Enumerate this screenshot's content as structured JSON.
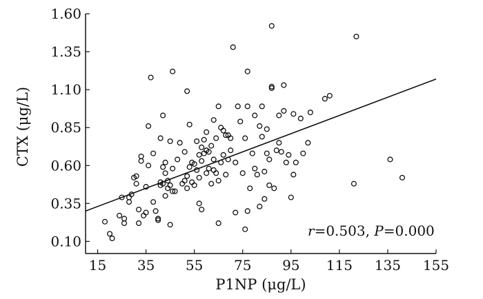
{
  "chart_data": {
    "type": "scatter",
    "xlabel": "P1NP (μg/L)",
    "ylabel": "CTX (μg/L)",
    "xlim": [
      10,
      155
    ],
    "ylim": [
      0.02,
      1.6
    ],
    "x_ticks": [
      "15",
      "35",
      "55",
      "75",
      "95",
      "115",
      "135",
      "155"
    ],
    "y_ticks": [
      "0.10",
      "0.35",
      "0.60",
      "0.85",
      "1.10",
      "1.35",
      "1.60"
    ],
    "annotation": {
      "r_label": "r",
      "r_value": "=0.503, ",
      "p_label": "P",
      "p_value": "=0.000"
    },
    "regression": {
      "x0": 10,
      "y0": 0.3,
      "x1": 155,
      "y1": 1.17
    },
    "marker": "open-circle",
    "points": [
      {
        "x": 18,
        "y": 0.23
      },
      {
        "x": 20,
        "y": 0.15
      },
      {
        "x": 21,
        "y": 0.12
      },
      {
        "x": 24,
        "y": 0.27
      },
      {
        "x": 25,
        "y": 0.39
      },
      {
        "x": 26,
        "y": 0.22
      },
      {
        "x": 26,
        "y": 0.25
      },
      {
        "x": 28,
        "y": 0.36
      },
      {
        "x": 28,
        "y": 0.39
      },
      {
        "x": 29,
        "y": 0.41
      },
      {
        "x": 30,
        "y": 0.52
      },
      {
        "x": 31,
        "y": 0.53
      },
      {
        "x": 31,
        "y": 0.48
      },
      {
        "x": 32,
        "y": 0.22
      },
      {
        "x": 32,
        "y": 0.31
      },
      {
        "x": 33,
        "y": 0.66
      },
      {
        "x": 33,
        "y": 0.63
      },
      {
        "x": 34,
        "y": 0.27
      },
      {
        "x": 35,
        "y": 0.29
      },
      {
        "x": 35,
        "y": 0.46
      },
      {
        "x": 36,
        "y": 0.6
      },
      {
        "x": 36,
        "y": 0.86
      },
      {
        "x": 37,
        "y": 1.18
      },
      {
        "x": 38,
        "y": 0.36
      },
      {
        "x": 38,
        "y": 0.68
      },
      {
        "x": 39,
        "y": 0.3
      },
      {
        "x": 40,
        "y": 0.24
      },
      {
        "x": 40,
        "y": 0.25
      },
      {
        "x": 41,
        "y": 0.47
      },
      {
        "x": 41,
        "y": 0.49
      },
      {
        "x": 41,
        "y": 0.78
      },
      {
        "x": 42,
        "y": 0.48
      },
      {
        "x": 42,
        "y": 0.59
      },
      {
        "x": 42,
        "y": 0.93
      },
      {
        "x": 43,
        "y": 0.4
      },
      {
        "x": 43,
        "y": 0.55
      },
      {
        "x": 43,
        "y": 0.62
      },
      {
        "x": 44,
        "y": 0.45
      },
      {
        "x": 44,
        "y": 0.5
      },
      {
        "x": 45,
        "y": 0.21
      },
      {
        "x": 45,
        "y": 0.47
      },
      {
        "x": 45,
        "y": 0.76
      },
      {
        "x": 46,
        "y": 0.43
      },
      {
        "x": 46,
        "y": 0.58
      },
      {
        "x": 46,
        "y": 1.22
      },
      {
        "x": 47,
        "y": 0.43
      },
      {
        "x": 48,
        "y": 0.64
      },
      {
        "x": 49,
        "y": 0.75
      },
      {
        "x": 50,
        "y": 0.48
      },
      {
        "x": 51,
        "y": 0.5
      },
      {
        "x": 51,
        "y": 0.69
      },
      {
        "x": 52,
        "y": 0.45
      },
      {
        "x": 52,
        "y": 0.53
      },
      {
        "x": 52,
        "y": 1.09
      },
      {
        "x": 53,
        "y": 0.59
      },
      {
        "x": 53,
        "y": 0.87
      },
      {
        "x": 54,
        "y": 0.49
      },
      {
        "x": 54,
        "y": 0.62
      },
      {
        "x": 55,
        "y": 0.47
      },
      {
        "x": 55,
        "y": 0.61
      },
      {
        "x": 56,
        "y": 0.57
      },
      {
        "x": 56,
        "y": 0.76
      },
      {
        "x": 57,
        "y": 0.35
      },
      {
        "x": 57,
        "y": 0.52
      },
      {
        "x": 57,
        "y": 0.67
      },
      {
        "x": 58,
        "y": 0.31
      },
      {
        "x": 58,
        "y": 0.63
      },
      {
        "x": 58,
        "y": 0.72
      },
      {
        "x": 59,
        "y": 0.68
      },
      {
        "x": 59,
        "y": 0.77
      },
      {
        "x": 60,
        "y": 0.55
      },
      {
        "x": 60,
        "y": 0.7
      },
      {
        "x": 60,
        "y": 0.82
      },
      {
        "x": 61,
        "y": 0.58
      },
      {
        "x": 61,
        "y": 0.69
      },
      {
        "x": 62,
        "y": 0.48
      },
      {
        "x": 62,
        "y": 0.73
      },
      {
        "x": 63,
        "y": 0.57
      },
      {
        "x": 63,
        "y": 0.64
      },
      {
        "x": 63,
        "y": 0.9
      },
      {
        "x": 64,
        "y": 0.55
      },
      {
        "x": 64,
        "y": 0.78
      },
      {
        "x": 65,
        "y": 0.22
      },
      {
        "x": 65,
        "y": 0.5
      },
      {
        "x": 65,
        "y": 0.99
      },
      {
        "x": 66,
        "y": 0.85
      },
      {
        "x": 66,
        "y": 0.62
      },
      {
        "x": 67,
        "y": 0.67
      },
      {
        "x": 67,
        "y": 0.83
      },
      {
        "x": 68,
        "y": 0.54
      },
      {
        "x": 68,
        "y": 0.8
      },
      {
        "x": 69,
        "y": 0.64
      },
      {
        "x": 69,
        "y": 0.8
      },
      {
        "x": 70,
        "y": 0.78
      },
      {
        "x": 70,
        "y": 0.7
      },
      {
        "x": 71,
        "y": 1.38
      },
      {
        "x": 72,
        "y": 0.29
      },
      {
        "x": 72,
        "y": 0.62
      },
      {
        "x": 73,
        "y": 0.99
      },
      {
        "x": 74,
        "y": 0.89
      },
      {
        "x": 75,
        "y": 0.55
      },
      {
        "x": 76,
        "y": 0.78
      },
      {
        "x": 76,
        "y": 0.18
      },
      {
        "x": 77,
        "y": 0.3
      },
      {
        "x": 77,
        "y": 1.22
      },
      {
        "x": 77,
        "y": 0.99
      },
      {
        "x": 78,
        "y": 0.45
      },
      {
        "x": 79,
        "y": 0.68
      },
      {
        "x": 80,
        "y": 0.58
      },
      {
        "x": 80,
        "y": 0.93
      },
      {
        "x": 81,
        "y": 0.54
      },
      {
        "x": 82,
        "y": 0.33
      },
      {
        "x": 82,
        "y": 0.86
      },
      {
        "x": 83,
        "y": 0.79
      },
      {
        "x": 83,
        "y": 0.99
      },
      {
        "x": 84,
        "y": 0.38
      },
      {
        "x": 84,
        "y": 0.56
      },
      {
        "x": 85,
        "y": 0.84
      },
      {
        "x": 85,
        "y": 0.68
      },
      {
        "x": 86,
        "y": 0.47
      },
      {
        "x": 86,
        "y": 0.64
      },
      {
        "x": 87,
        "y": 1.11
      },
      {
        "x": 87,
        "y": 1.12
      },
      {
        "x": 87,
        "y": 1.52
      },
      {
        "x": 88,
        "y": 0.45
      },
      {
        "x": 89,
        "y": 0.7
      },
      {
        "x": 90,
        "y": 0.93
      },
      {
        "x": 90,
        "y": 0.75
      },
      {
        "x": 91,
        "y": 0.69
      },
      {
        "x": 92,
        "y": 0.96
      },
      {
        "x": 92,
        "y": 1.13
      },
      {
        "x": 93,
        "y": 0.62
      },
      {
        "x": 94,
        "y": 0.67
      },
      {
        "x": 95,
        "y": 0.39
      },
      {
        "x": 96,
        "y": 0.54
      },
      {
        "x": 96,
        "y": 0.94
      },
      {
        "x": 97,
        "y": 0.62
      },
      {
        "x": 99,
        "y": 0.91
      },
      {
        "x": 100,
        "y": 0.68
      },
      {
        "x": 102,
        "y": 0.75
      },
      {
        "x": 103,
        "y": 0.95
      },
      {
        "x": 109,
        "y": 1.04
      },
      {
        "x": 111,
        "y": 1.06
      },
      {
        "x": 121,
        "y": 0.48
      },
      {
        "x": 122,
        "y": 1.45
      },
      {
        "x": 136,
        "y": 0.64
      },
      {
        "x": 141,
        "y": 0.52
      }
    ]
  }
}
